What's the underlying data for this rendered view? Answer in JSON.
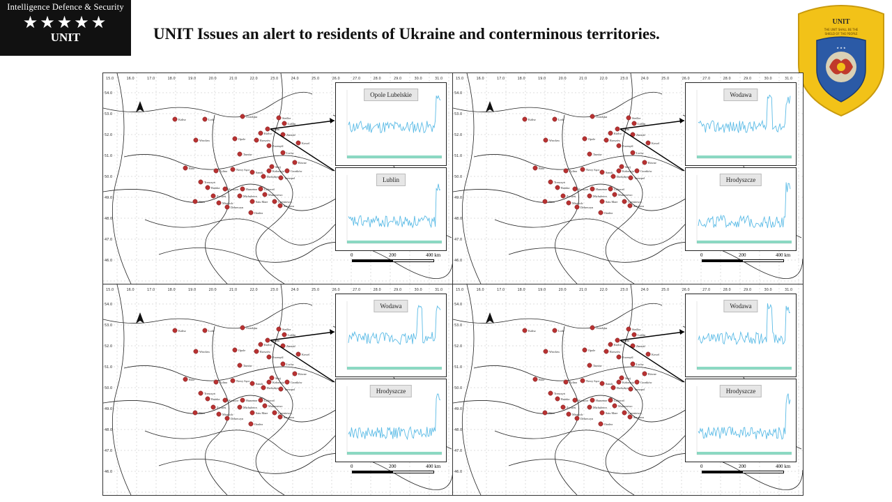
{
  "header": {
    "org_name": "Intelligence Defence & Security",
    "stars": "★★★★★",
    "unit_label": "UNIT",
    "title": "UNIT Issues an alert to residents of Ukraine and conterminous territories."
  },
  "emblem": {
    "top_text": "UNIT",
    "colors": {
      "outer": "#f2c218",
      "inner": "#2b5aa6",
      "accent": "#c0392b"
    }
  },
  "panels": [
    {
      "inset_top_label": "Opole Lubelskie",
      "inset_bottom_label": "Lublin"
    },
    {
      "inset_top_label": "Wodawa",
      "inset_bottom_label": "Hrodyszcze"
    },
    {
      "inset_top_label": "Wodawa",
      "inset_bottom_label": "Hrodyszcze"
    },
    {
      "inset_top_label": "Wodawa",
      "inset_bottom_label": "Hrodyszcze"
    }
  ],
  "scale": {
    "start": "0",
    "mid": "200",
    "end": "400 km"
  },
  "colors": {
    "station": "#b83232",
    "series": "#5bbbe6",
    "fill": "#3fbf9b"
  }
}
